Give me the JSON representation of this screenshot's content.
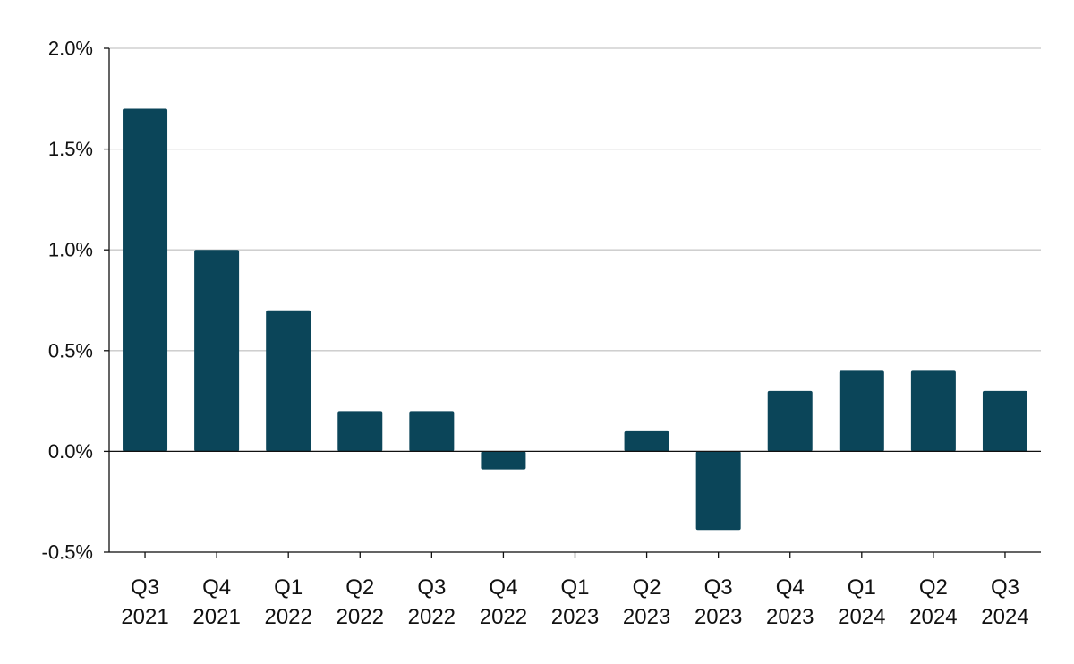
{
  "chart_data": {
    "type": "bar",
    "title": "",
    "xlabel": "",
    "ylabel": "",
    "categories": [
      [
        "Q3",
        "2021"
      ],
      [
        "Q4",
        "2021"
      ],
      [
        "Q1",
        "2022"
      ],
      [
        "Q2",
        "2022"
      ],
      [
        "Q3",
        "2022"
      ],
      [
        "Q4",
        "2022"
      ],
      [
        "Q1",
        "2023"
      ],
      [
        "Q2",
        "2023"
      ],
      [
        "Q3",
        "2023"
      ],
      [
        "Q4",
        "2023"
      ],
      [
        "Q1",
        "2024"
      ],
      [
        "Q2",
        "2024"
      ],
      [
        "Q3",
        "2024"
      ]
    ],
    "values": [
      1.7,
      1.0,
      0.7,
      0.2,
      0.2,
      -0.09,
      0.0,
      0.1,
      -0.39,
      0.3,
      0.4,
      0.4,
      0.3
    ],
    "unit": "%",
    "ylim": [
      -0.5,
      2.0
    ],
    "yticks": [
      -0.5,
      0.0,
      0.5,
      1.0,
      1.5,
      2.0
    ],
    "ytick_labels": [
      "-0.5%",
      "0.0%",
      "0.5%",
      "1.0%",
      "1.5%",
      "2.0%"
    ],
    "grid": true,
    "legend": "none",
    "bar_color": "#0b4559",
    "grid_color": "#c8c8c8",
    "axis_color": "#111111"
  }
}
